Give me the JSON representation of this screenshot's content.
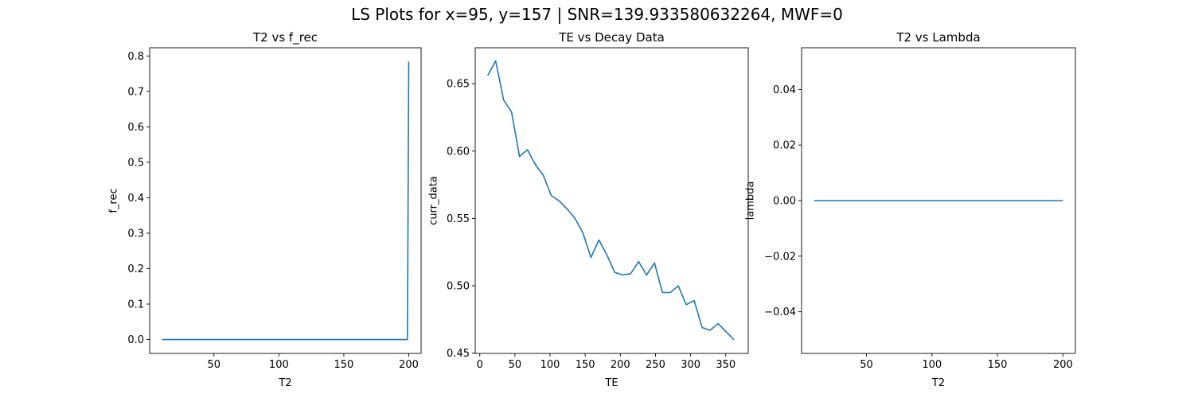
{
  "figure": {
    "suptitle": "LS Plots for x=95, y=157 | SNR=139.933580632264, MWF=0",
    "line_color": "#1f77b4"
  },
  "chart_data": [
    {
      "type": "line",
      "title": "T2 vs f_rec",
      "xlabel": "T2",
      "ylabel": "f_rec",
      "xlim": [
        0.5,
        209.5
      ],
      "ylim": [
        -0.0392,
        0.8232
      ],
      "xticks": [
        50,
        100,
        150,
        200
      ],
      "xtick_labels": [
        "50",
        "100",
        "150",
        "200"
      ],
      "yticks": [
        0.0,
        0.1,
        0.2,
        0.3,
        0.4,
        0.5,
        0.6,
        0.7,
        0.8
      ],
      "ytick_labels": [
        "0.0",
        "0.1",
        "0.2",
        "0.3",
        "0.4",
        "0.5",
        "0.6",
        "0.7",
        "0.8"
      ],
      "series": [
        {
          "x": [
            10,
            195,
            199,
            200
          ],
          "y": [
            0.0,
            0.0,
            0.0,
            0.784
          ]
        }
      ]
    },
    {
      "type": "line",
      "title": "TE vs Decay Data",
      "xlabel": "TE",
      "ylabel": "curr_data",
      "xlim": [
        -6.5,
        382
      ],
      "ylim": [
        0.4498,
        0.6767
      ],
      "xticks": [
        0,
        50,
        100,
        150,
        200,
        250,
        300,
        350
      ],
      "xtick_labels": [
        "0",
        "50",
        "100",
        "150",
        "200",
        "250",
        "300",
        "350"
      ],
      "yticks": [
        0.45,
        0.5,
        0.55,
        0.6,
        0.65
      ],
      "ytick_labels": [
        "0.45",
        "0.50",
        "0.55",
        "0.60",
        "0.65"
      ],
      "series": [
        {
          "x": [
            11.3,
            22.6,
            33.9,
            45.2,
            56.5,
            67.8,
            79.1,
            90.4,
            101.7,
            113,
            124.3,
            135.6,
            146.9,
            158.2,
            169.5,
            180.8,
            192.1,
            203.4,
            214.7,
            226,
            237.3,
            248.6,
            259.9,
            271.2,
            282.5,
            293.8,
            305.1,
            316.4,
            327.7,
            339,
            350.3,
            361.6
          ],
          "y": [
            0.656,
            0.667,
            0.638,
            0.629,
            0.596,
            0.601,
            0.59,
            0.582,
            0.567,
            0.563,
            0.557,
            0.55,
            0.539,
            0.521,
            0.534,
            0.523,
            0.51,
            0.508,
            0.509,
            0.518,
            0.508,
            0.517,
            0.495,
            0.495,
            0.5,
            0.486,
            0.489,
            0.469,
            0.467,
            0.472,
            0.466,
            0.46
          ]
        }
      ]
    },
    {
      "type": "line",
      "title": "T2 vs Lambda",
      "xlabel": "T2",
      "ylabel": "lambda",
      "xlim": [
        0.5,
        209.5
      ],
      "ylim": [
        -0.055,
        0.055
      ],
      "xticks": [
        50,
        100,
        150,
        200
      ],
      "xtick_labels": [
        "50",
        "100",
        "150",
        "200"
      ],
      "yticks": [
        -0.04,
        -0.02,
        0.0,
        0.02,
        0.04
      ],
      "ytick_labels": [
        "−0.04",
        "−0.02",
        "0.00",
        "0.02",
        "0.04"
      ],
      "series": [
        {
          "x": [
            10,
            200
          ],
          "y": [
            0.0,
            0.0
          ]
        }
      ]
    }
  ]
}
